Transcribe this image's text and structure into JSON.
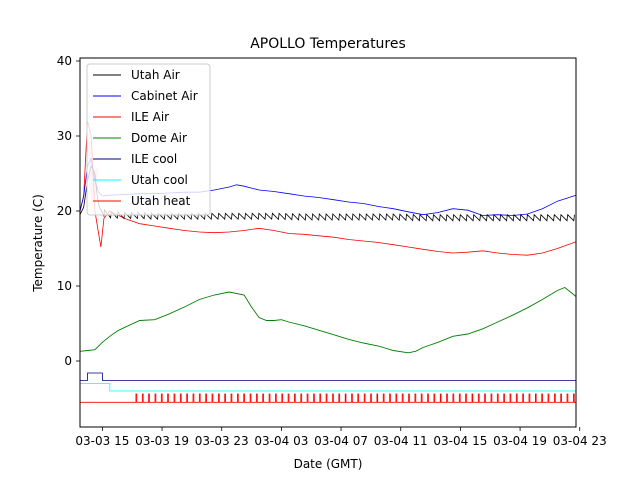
{
  "chart_data": {
    "type": "line",
    "title": "APOLLO Temperatures",
    "xlabel": "Date (GMT)",
    "ylabel": "Temperature (C)",
    "ylim": [
      -8.8,
      40.4
    ],
    "xlim": [
      0,
      66.5
    ],
    "x_unit": "hours since 03-03 12:00 GMT",
    "yticks": [
      0,
      10,
      20,
      30,
      40
    ],
    "xticks": [
      {
        "x": 3,
        "label": "03-03 15"
      },
      {
        "x": 11,
        "label": "03-03 19"
      },
      {
        "x": 19,
        "label": "03-03 23"
      },
      {
        "x": 27,
        "label": "03-04 03"
      },
      {
        "x": 35,
        "label": "03-04 07"
      },
      {
        "x": 43,
        "label": "03-04 11"
      },
      {
        "x": 51,
        "label": "03-04 15"
      },
      {
        "x": 59,
        "label": "03-04 19"
      },
      {
        "x": 67,
        "label": "03-04 23"
      }
    ],
    "legend_position": "top-left",
    "series": [
      {
        "name": "Utah Air",
        "color": "#000000",
        "x": [
          0,
          0.5,
          1,
          1.5,
          2,
          2.3,
          2.6,
          3,
          4,
          6,
          8,
          10,
          14,
          18,
          22,
          26,
          30,
          34,
          38,
          42,
          46,
          50,
          54,
          58,
          62,
          66.5
        ],
        "y": [
          19.5,
          20.5,
          24,
          26,
          25,
          22,
          20.5,
          19.8,
          19.5,
          19.4,
          19.4,
          19.3,
          19.3,
          19.3,
          19.3,
          19.3,
          19.2,
          19.2,
          19.2,
          19.2,
          19.1,
          19.1,
          19.1,
          19.1,
          19.1,
          19.1
        ],
        "oscillation": 0.4,
        "period": 0.9
      },
      {
        "name": "Cabinet Air",
        "color": "#0000ff",
        "x": [
          0,
          0.5,
          1,
          1.5,
          2,
          2.5,
          3,
          4,
          6,
          8,
          10,
          12,
          14,
          16,
          18,
          20,
          21,
          22,
          24,
          26,
          28,
          30,
          32,
          34,
          36,
          38,
          40,
          42,
          44,
          46,
          48,
          50,
          52,
          54,
          56,
          58,
          60,
          62,
          64,
          66.5
        ],
        "y": [
          20,
          22,
          26,
          27,
          24,
          22.5,
          22,
          22.1,
          22.2,
          22.3,
          22.3,
          22.4,
          22.5,
          22.5,
          22.8,
          23.2,
          23.5,
          23.3,
          22.8,
          22.6,
          22.3,
          22.0,
          21.8,
          21.5,
          21.2,
          21.0,
          20.6,
          20.3,
          19.9,
          19.5,
          19.8,
          20.3,
          20.1,
          19.4,
          19.5,
          19.4,
          19.6,
          20.3,
          21.3,
          22.1
        ]
      },
      {
        "name": "ILE Air",
        "color": "#ff0000",
        "x": [
          0,
          0.5,
          1,
          1.5,
          2,
          2.5,
          2.8,
          3.2,
          4,
          6,
          8,
          10,
          12,
          14,
          16,
          18,
          20,
          22,
          24,
          26,
          28,
          30,
          32,
          34,
          36,
          38,
          40,
          42,
          44,
          46,
          48,
          50,
          52,
          54,
          56,
          58,
          60,
          62,
          64,
          66.5
        ],
        "y": [
          20,
          22,
          32,
          30,
          20,
          17,
          15.2,
          19,
          20,
          19,
          18.3,
          18.0,
          17.7,
          17.4,
          17.2,
          17.1,
          17.2,
          17.4,
          17.7,
          17.4,
          17.0,
          16.9,
          16.7,
          16.5,
          16.2,
          16.0,
          15.8,
          15.5,
          15.2,
          14.9,
          14.6,
          14.4,
          14.5,
          14.7,
          14.4,
          14.2,
          14.1,
          14.4,
          15.0,
          15.9
        ]
      },
      {
        "name": "Dome Air",
        "color": "#008000",
        "x": [
          0,
          1,
          2,
          3,
          4,
          5,
          6,
          8,
          10,
          12,
          14,
          16,
          18,
          20,
          22,
          23,
          24,
          25,
          26,
          27,
          28,
          30,
          32,
          34,
          36,
          38,
          40,
          42,
          44,
          45,
          46,
          48,
          50,
          52,
          54,
          56,
          58,
          60,
          62,
          64,
          65,
          66.5
        ],
        "y": [
          1.3,
          1.4,
          1.5,
          2.5,
          3.3,
          4.0,
          4.5,
          5.4,
          5.5,
          6.3,
          7.2,
          8.2,
          8.8,
          9.2,
          8.8,
          7.2,
          5.8,
          5.4,
          5.4,
          5.5,
          5.2,
          4.7,
          4.1,
          3.5,
          2.9,
          2.4,
          2.0,
          1.4,
          1.1,
          1.3,
          1.8,
          2.5,
          3.3,
          3.6,
          4.3,
          5.2,
          6.1,
          7.1,
          8.2,
          9.4,
          9.8,
          8.6
        ]
      },
      {
        "name": "ILE cool",
        "color": "#000080",
        "x": [
          0,
          1,
          1,
          3,
          3,
          66.5
        ],
        "y": [
          -2.6,
          -2.6,
          -1.6,
          -1.6,
          -2.6,
          -2.6
        ]
      },
      {
        "name": "Utah cool",
        "color": "#00ffff",
        "x": [
          0,
          4,
          4,
          66.5
        ],
        "y": [
          -3.0,
          -3.0,
          -4.0,
          -4.0
        ]
      },
      {
        "name": "Utah heat",
        "color": "#ff0000",
        "x": [
          0,
          66.5
        ],
        "y": [
          -5.5,
          -5.5
        ],
        "pulse_start": 7.5,
        "pulse_step": 0.85,
        "pulse_top": -4.4
      }
    ],
    "band": {
      "color": "#ffc0cb",
      "x": [
        1.2,
        1.6,
        2.0,
        2.4
      ],
      "y_low": [
        24,
        21,
        22,
        23
      ],
      "y_high": [
        32,
        26,
        25.5,
        26
      ]
    }
  }
}
